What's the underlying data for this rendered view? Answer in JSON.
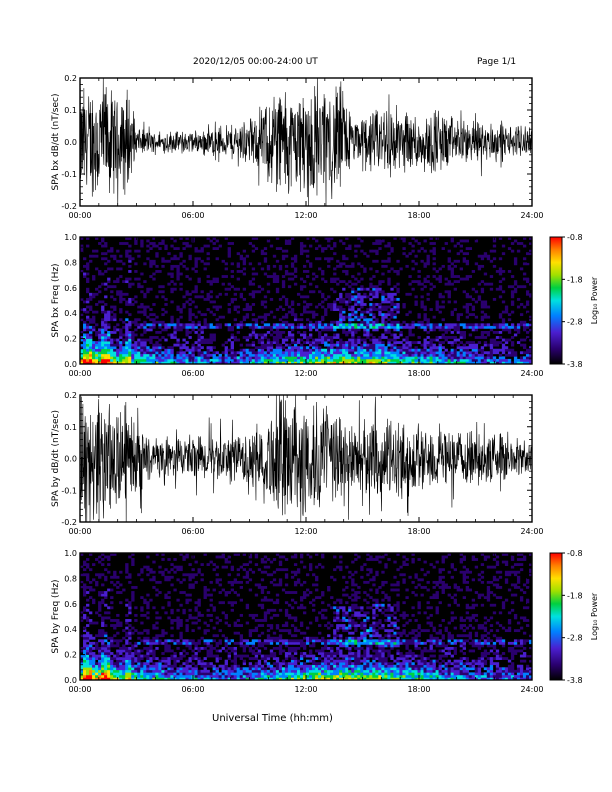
{
  "header": {
    "date_range": "2020/12/05  00:00-24:00 UT",
    "page": "Page 1/1"
  },
  "footer": {
    "xlabel": "Universal Time (hh:mm)"
  },
  "time_ticks": [
    "00:00",
    "06:00",
    "12:00",
    "18:00",
    "24:00"
  ],
  "colors": {
    "trace": "#000000",
    "spectrogram_background": "#000000",
    "colorbar": [
      "#000000",
      "#2a006e",
      "#4a1fd0",
      "#0080ff",
      "#00e0e0",
      "#00d040",
      "#a0e000",
      "#ffe000",
      "#ff8000",
      "#ff0000"
    ]
  },
  "chart_data": [
    {
      "type": "line",
      "panel": "bx-waveform",
      "ylabel": "SPA bx dB/dt (nT/sec)",
      "ylim": [
        -0.2,
        0.2
      ],
      "yticks": [
        "-0.2",
        "-0.1",
        "0.0",
        "0.1",
        "0.2"
      ],
      "xlim_hours": [
        0,
        24
      ],
      "envelope": {
        "x_hours": [
          0,
          0.5,
          1.0,
          1.5,
          2.0,
          2.5,
          3.0,
          4,
          5,
          6,
          7,
          8,
          9,
          9.5,
          10,
          10.5,
          11,
          11.5,
          12,
          12.5,
          13,
          13.5,
          14,
          14.5,
          15,
          16,
          16.5,
          17,
          18,
          19,
          20,
          21,
          22,
          23,
          24
        ],
        "amplitude": [
          0.2,
          0.2,
          0.2,
          0.2,
          0.14,
          0.2,
          0.05,
          0.03,
          0.04,
          0.04,
          0.05,
          0.06,
          0.08,
          0.1,
          0.16,
          0.2,
          0.2,
          0.17,
          0.2,
          0.2,
          0.18,
          0.2,
          0.2,
          0.08,
          0.1,
          0.12,
          0.15,
          0.11,
          0.1,
          0.11,
          0.08,
          0.07,
          0.07,
          0.05,
          0.05
        ]
      }
    },
    {
      "type": "heatmap",
      "panel": "bx-spectrogram",
      "ylabel": "SPA bx Freq (Hz)",
      "ylim": [
        0.0,
        1.0
      ],
      "yticks": [
        "0.0",
        "0.2",
        "0.4",
        "0.6",
        "0.8",
        "1.0"
      ],
      "xlim_hours": [
        0,
        24
      ],
      "colorbar": {
        "label": "Log₁₀ Power",
        "ticks": [
          "-0.8",
          "-1.8",
          "-2.8",
          "-3.8"
        ],
        "range": [
          -3.8,
          -0.8
        ]
      }
    },
    {
      "type": "line",
      "panel": "by-waveform",
      "ylabel": "SPA by dB/dt (nT/sec)",
      "ylim": [
        -0.2,
        0.2
      ],
      "yticks": [
        "-0.2",
        "-0.1",
        "0.0",
        "0.1",
        "0.2"
      ],
      "xlim_hours": [
        0,
        24
      ],
      "envelope": {
        "x_hours": [
          0,
          0.5,
          1.0,
          1.5,
          2.0,
          2.5,
          3.0,
          4,
          5,
          6,
          7,
          8,
          9,
          9.5,
          10,
          10.5,
          11,
          11.5,
          12,
          12.5,
          13,
          13.5,
          14,
          14.5,
          15,
          16,
          16.5,
          17,
          18,
          19,
          20,
          21,
          22,
          23,
          24
        ],
        "amplitude": [
          0.2,
          0.2,
          0.2,
          0.2,
          0.18,
          0.2,
          0.12,
          0.06,
          0.07,
          0.08,
          0.08,
          0.09,
          0.1,
          0.12,
          0.17,
          0.2,
          0.2,
          0.2,
          0.2,
          0.2,
          0.2,
          0.16,
          0.2,
          0.11,
          0.13,
          0.14,
          0.15,
          0.13,
          0.12,
          0.12,
          0.1,
          0.09,
          0.09,
          0.07,
          0.05
        ]
      }
    },
    {
      "type": "heatmap",
      "panel": "by-spectrogram",
      "ylabel": "SPA by Freq (Hz)",
      "ylim": [
        0.0,
        1.0
      ],
      "yticks": [
        "0.0",
        "0.2",
        "0.4",
        "0.6",
        "0.8",
        "1.0"
      ],
      "xlim_hours": [
        0,
        24
      ],
      "colorbar": {
        "label": "Log₁₀ Power",
        "ticks": [
          "-0.8",
          "-1.8",
          "-2.8",
          "-3.8"
        ],
        "range": [
          -3.8,
          -0.8
        ]
      }
    }
  ]
}
